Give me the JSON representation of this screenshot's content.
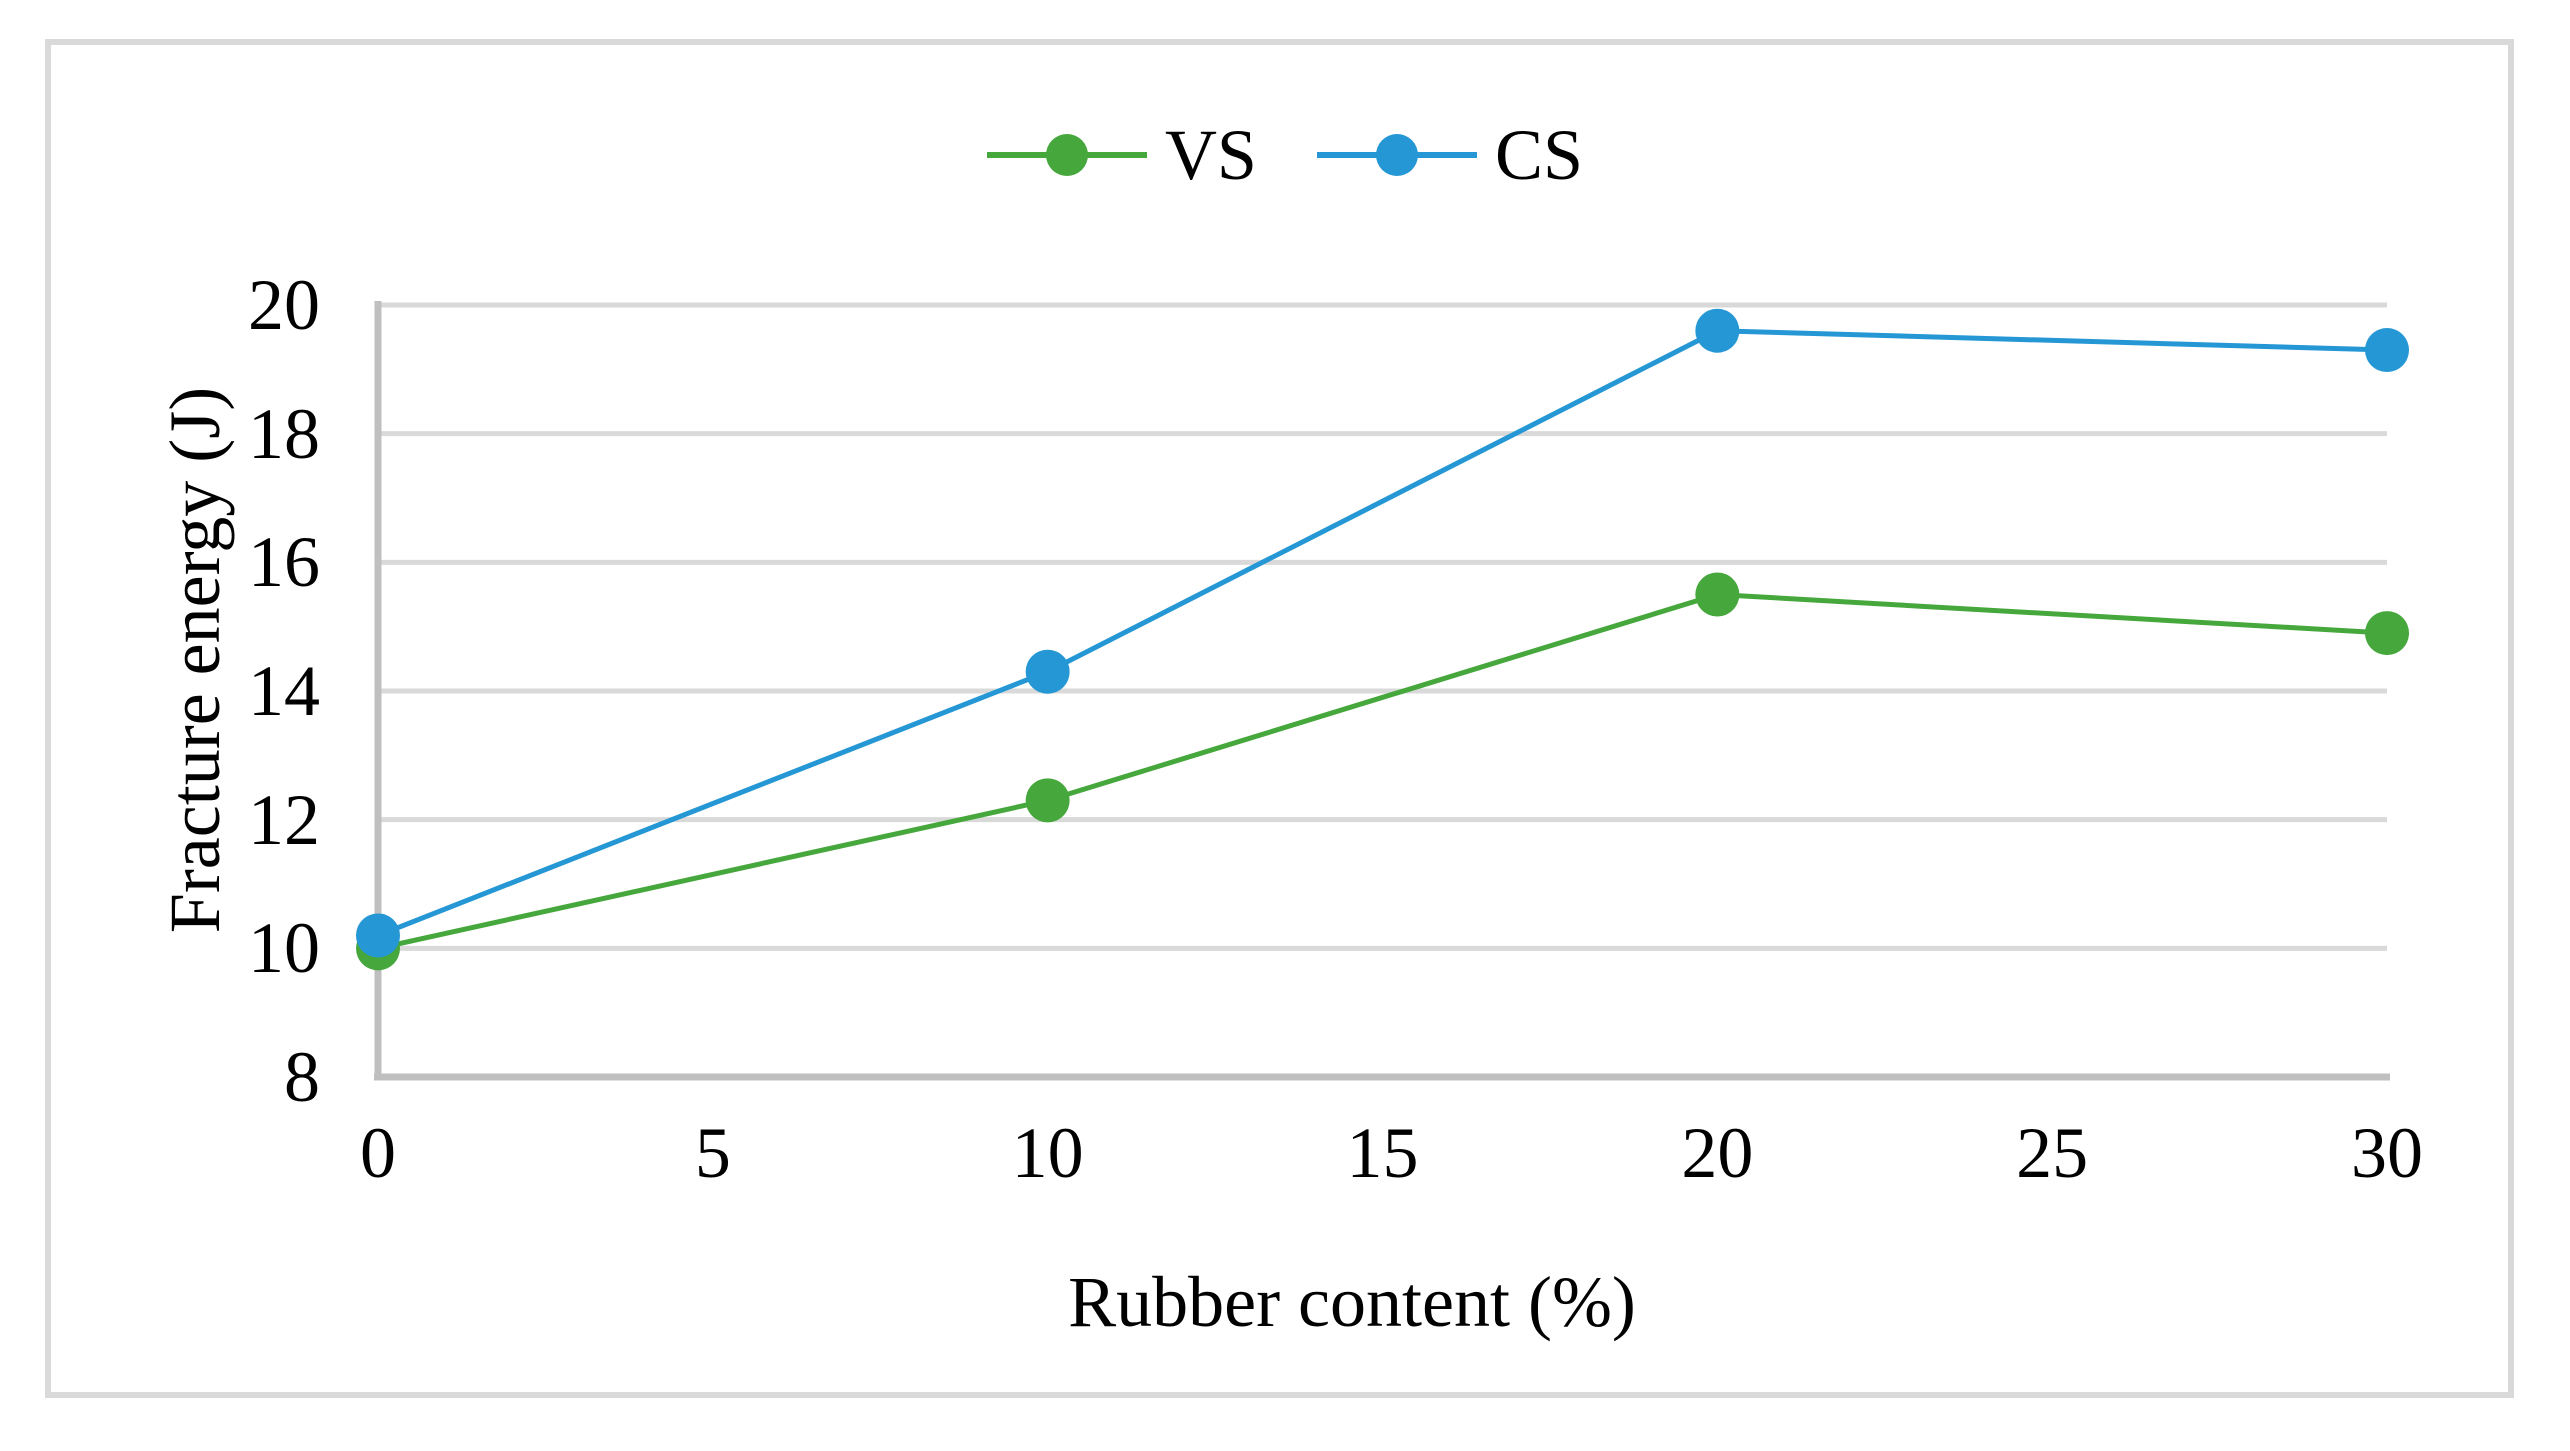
{
  "chart_data": {
    "type": "line",
    "title": "",
    "xlabel": "Rubber content (%)",
    "ylabel": "Fracture energy (J)",
    "x": [
      0,
      10,
      20,
      30
    ],
    "series": [
      {
        "name": "VS",
        "color": "#46A83C",
        "values": [
          10.0,
          12.3,
          15.5,
          14.9
        ]
      },
      {
        "name": "CS",
        "color": "#2497D4",
        "values": [
          10.2,
          14.3,
          19.6,
          19.3
        ]
      }
    ],
    "xlim": [
      0,
      30
    ],
    "ylim": [
      8,
      20
    ],
    "x_ticks": [
      0,
      5,
      10,
      15,
      20,
      25,
      30
    ],
    "y_ticks": [
      8,
      10,
      12,
      14,
      16,
      18,
      20
    ],
    "grid": "horizontal",
    "legend_position": "top-center",
    "marker": "circle",
    "marker_size": 44
  },
  "style": {
    "grid_color": "#D9D9D9",
    "axis_color": "#BFBFBF",
    "border_color": "#D9D9D9",
    "text_color": "#000000",
    "background": "#FFFFFF"
  }
}
